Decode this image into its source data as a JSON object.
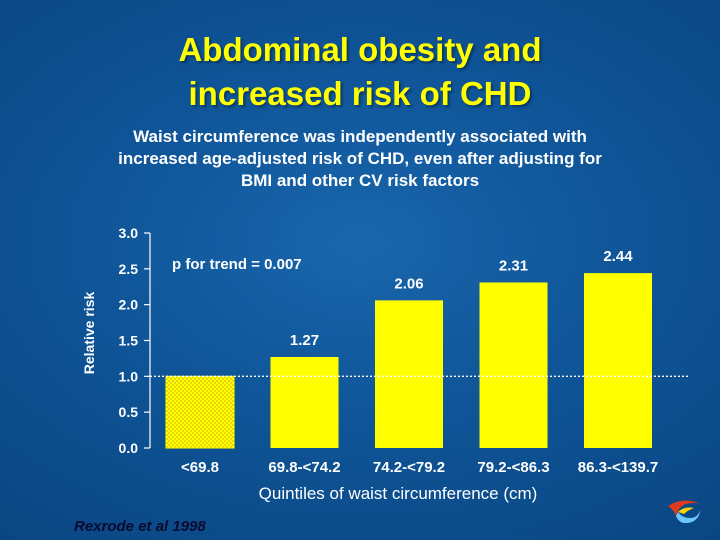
{
  "title_line1": "Abdominal obesity and",
  "title_line2": "increased risk of CHD",
  "subtitle_line1": "Waist circumference was independently associated with",
  "subtitle_line2": "increased age-adjusted risk of CHD, even after  adjusting for",
  "subtitle_line3": "BMI and other CV risk factors",
  "citation": "Rexrode et al 1998",
  "colors": {
    "background": "#0f5598",
    "title": "#ffff00",
    "bar": "#ffff00",
    "reference_bar_pattern": "#c8a000",
    "text": "#ffffff"
  },
  "logo_icon": "swirl-logo-icon",
  "chart_data": {
    "type": "bar",
    "categories": [
      "<69.8",
      "69.8-<74.2",
      "74.2-<79.2",
      "79.2-<86.3",
      "86.3-<139.7"
    ],
    "values": [
      1.0,
      1.27,
      2.06,
      2.31,
      2.44
    ],
    "value_labels": [
      "",
      "1.27",
      "2.06",
      "2.31",
      "2.44"
    ],
    "reference_category": "<69.8",
    "reference_line": 1.0,
    "ylabel": "Relative risk",
    "xlabel": "Quintiles of waist circumference (cm)",
    "ylim": [
      0,
      3.0
    ],
    "yticks": [
      "0.0",
      "0.5",
      "1.0",
      "1.5",
      "2.0",
      "2.5",
      "3.0"
    ],
    "annotation": "p for trend = 0.007",
    "grid": false,
    "legend": "none"
  }
}
